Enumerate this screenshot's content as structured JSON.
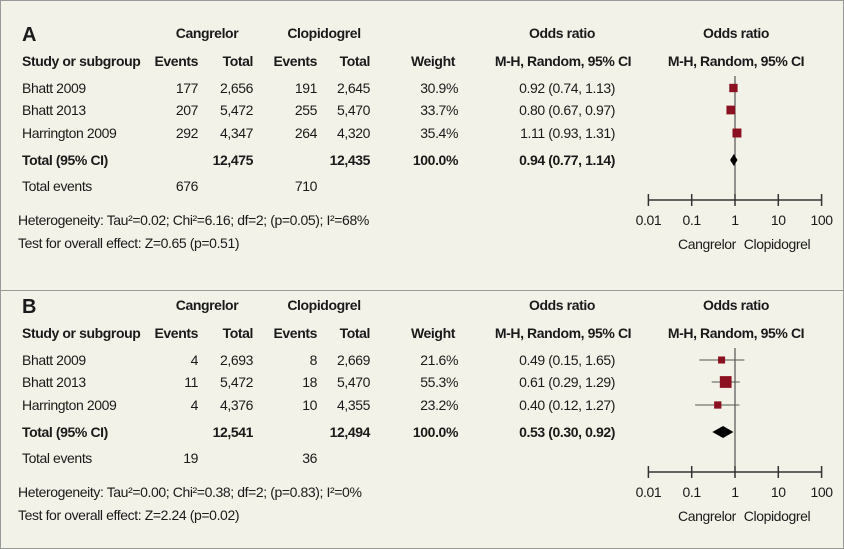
{
  "panels": [
    {
      "label": "A",
      "group1": "Cangrelor",
      "group2": "Clopidogrel",
      "or_header": "Odds ratio",
      "plot_header": "Odds ratio",
      "columns": [
        "Study or subgroup",
        "Events",
        "Total",
        "Events",
        "Total",
        "Weight",
        "M-H, Random, 95% CI",
        "M-H, Random, 95% CI"
      ],
      "rows": [
        {
          "study": "Bhatt 2009",
          "e1": "177",
          "t1": "2,656",
          "e2": "191",
          "t2": "2,645",
          "weight": "30.9%",
          "or_text": "0.92 (0.74, 1.13)"
        },
        {
          "study": "Bhatt 2013",
          "e1": "207",
          "t1": "5,472",
          "e2": "255",
          "t2": "5,470",
          "weight": "33.7%",
          "or_text": "0.80 (0.67, 0.97)"
        },
        {
          "study": "Harrington 2009",
          "e1": "292",
          "t1": "4,347",
          "e2": "264",
          "t2": "4,320",
          "weight": "35.4%",
          "or_text": "1.11 (0.93, 1.31)"
        }
      ],
      "total": {
        "label": "Total (95% CI)",
        "t1": "12,475",
        "t2": "12,435",
        "weight": "100.0%",
        "or_text": "0.94 (0.77, 1.14)"
      },
      "total_events": {
        "label": "Total events",
        "e1": "676",
        "e2": "710"
      },
      "heterogeneity": "Heterogeneity: Tau²=0.02; Chi²=6.16; df=2; (p=0.05); I²=68%",
      "overall": "Test for overall effect: Z=0.65 (p=0.51)"
    },
    {
      "label": "B",
      "group1": "Cangrelor",
      "group2": "Clopidogrel",
      "or_header": "Odds ratio",
      "plot_header": "Odds ratio",
      "columns": [
        "Study or subgroup",
        "Events",
        "Total",
        "Events",
        "Total",
        "Weight",
        "M-H, Random, 95% CI",
        "M-H, Random, 95% CI"
      ],
      "rows": [
        {
          "study": "Bhatt 2009",
          "e1": "4",
          "t1": "2,693",
          "e2": "8",
          "t2": "2,669",
          "weight": "21.6%",
          "or_text": "0.49 (0.15, 1.65)"
        },
        {
          "study": "Bhatt 2013",
          "e1": "11",
          "t1": "5,472",
          "e2": "18",
          "t2": "5,470",
          "weight": "55.3%",
          "or_text": "0.61 (0.29, 1.29)"
        },
        {
          "study": "Harrington 2009",
          "e1": "4",
          "t1": "4,376",
          "e2": "10",
          "t2": "4,355",
          "weight": "23.2%",
          "or_text": "0.40 (0.12, 1.27)"
        }
      ],
      "total": {
        "label": "Total (95% CI)",
        "t1": "12,541",
        "t2": "12,494",
        "weight": "100.0%",
        "or_text": "0.53 (0.30, 0.92)"
      },
      "total_events": {
        "label": "Total events",
        "e1": "19",
        "e2": "36"
      },
      "heterogeneity": "Heterogeneity: Tau²=0.00; Chi²=0.38; df=2; (p=0.83); I²=0%",
      "overall": "Test for overall effect: Z=2.24 (p=0.02)"
    }
  ],
  "chart_data": [
    {
      "type": "scatter",
      "title": "A",
      "xscale": "log",
      "xlim": [
        0.01,
        100
      ],
      "xticks": [
        "0.01",
        "0.1",
        "1",
        "10",
        "100"
      ],
      "left_label": "Cangrelor",
      "right_label": "Clopidogrel",
      "studies": [
        {
          "name": "Bhatt 2009",
          "or": 0.92,
          "lo": 0.74,
          "hi": 1.13,
          "weight": 30.9
        },
        {
          "name": "Bhatt 2013",
          "or": 0.8,
          "lo": 0.67,
          "hi": 0.97,
          "weight": 33.7
        },
        {
          "name": "Harrington 2009",
          "or": 1.11,
          "lo": 0.93,
          "hi": 1.31,
          "weight": 35.4
        }
      ],
      "pooled": {
        "or": 0.94,
        "lo": 0.77,
        "hi": 1.14
      }
    },
    {
      "type": "scatter",
      "title": "B",
      "xscale": "log",
      "xlim": [
        0.01,
        100
      ],
      "xticks": [
        "0.01",
        "0.1",
        "1",
        "10",
        "100"
      ],
      "left_label": "Cangrelor",
      "right_label": "Clopidogrel",
      "studies": [
        {
          "name": "Bhatt 2009",
          "or": 0.49,
          "lo": 0.15,
          "hi": 1.65,
          "weight": 21.6
        },
        {
          "name": "Bhatt 2013",
          "or": 0.61,
          "lo": 0.29,
          "hi": 1.29,
          "weight": 55.3
        },
        {
          "name": "Harrington 2009",
          "or": 0.4,
          "lo": 0.12,
          "hi": 1.27,
          "weight": 23.2
        }
      ],
      "pooled": {
        "or": 0.53,
        "lo": 0.3,
        "hi": 0.92
      }
    }
  ],
  "colors": {
    "marker": "#8b1020",
    "diamond": "#000000",
    "background": "#f3f2e8"
  }
}
